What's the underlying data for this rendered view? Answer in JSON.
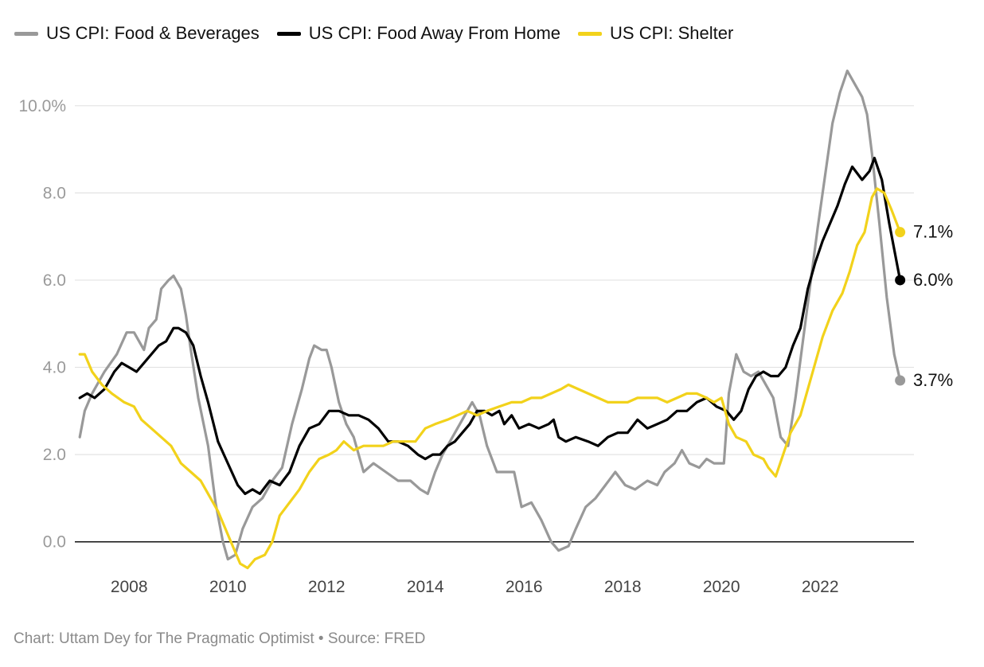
{
  "legend": [
    {
      "label": "US CPI: Food & Beverages",
      "color": "#999999"
    },
    {
      "label": "US CPI: Food Away From Home",
      "color": "#000000"
    },
    {
      "label": "US CPI: Shelter",
      "color": "#f2d21b"
    }
  ],
  "credit": "Chart: Uttam Dey for The Pragmatic Optimist • Source: FRED",
  "chart_data": {
    "type": "line",
    "title": "",
    "xlabel": "",
    "ylabel": "",
    "xlim": [
      2006.9,
      2023.9
    ],
    "ylim": [
      -0.9,
      11.0
    ],
    "yticks": [
      0,
      2,
      4,
      6,
      8,
      10
    ],
    "ytick_labels": [
      "0.0",
      "2.0",
      "4.0",
      "6.0",
      "8.0",
      "10.0%"
    ],
    "xticks": [
      2008,
      2010,
      2012,
      2014,
      2016,
      2018,
      2020,
      2022
    ],
    "xtick_labels": [
      "2008",
      "2010",
      "2012",
      "2014",
      "2016",
      "2018",
      "2020",
      "2022"
    ],
    "grid": "horizontal",
    "legend_position": "top-left",
    "series": [
      {
        "name": "US CPI: Food & Beverages",
        "color": "#999999",
        "end_label": "3.7%",
        "points": [
          [
            2007.0,
            2.4
          ],
          [
            2007.1,
            3.0
          ],
          [
            2007.25,
            3.4
          ],
          [
            2007.5,
            3.9
          ],
          [
            2007.75,
            4.3
          ],
          [
            2007.95,
            4.8
          ],
          [
            2008.1,
            4.8
          ],
          [
            2008.3,
            4.4
          ],
          [
            2008.4,
            4.9
          ],
          [
            2008.55,
            5.1
          ],
          [
            2008.65,
            5.8
          ],
          [
            2008.8,
            6.0
          ],
          [
            2008.9,
            6.1
          ],
          [
            2009.05,
            5.8
          ],
          [
            2009.15,
            5.2
          ],
          [
            2009.25,
            4.4
          ],
          [
            2009.4,
            3.3
          ],
          [
            2009.6,
            2.2
          ],
          [
            2009.75,
            0.9
          ],
          [
            2009.9,
            0.0
          ],
          [
            2010.0,
            -0.4
          ],
          [
            2010.15,
            -0.3
          ],
          [
            2010.3,
            0.3
          ],
          [
            2010.5,
            0.8
          ],
          [
            2010.7,
            1.0
          ],
          [
            2010.9,
            1.4
          ],
          [
            2011.1,
            1.7
          ],
          [
            2011.3,
            2.7
          ],
          [
            2011.5,
            3.5
          ],
          [
            2011.65,
            4.2
          ],
          [
            2011.75,
            4.5
          ],
          [
            2011.9,
            4.4
          ],
          [
            2012.0,
            4.4
          ],
          [
            2012.1,
            4.0
          ],
          [
            2012.25,
            3.2
          ],
          [
            2012.4,
            2.7
          ],
          [
            2012.55,
            2.4
          ],
          [
            2012.75,
            1.6
          ],
          [
            2012.95,
            1.8
          ],
          [
            2013.2,
            1.6
          ],
          [
            2013.45,
            1.4
          ],
          [
            2013.7,
            1.4
          ],
          [
            2013.9,
            1.2
          ],
          [
            2014.05,
            1.1
          ],
          [
            2014.2,
            1.6
          ],
          [
            2014.35,
            2.0
          ],
          [
            2014.5,
            2.3
          ],
          [
            2014.7,
            2.7
          ],
          [
            2014.85,
            3.0
          ],
          [
            2014.95,
            3.2
          ],
          [
            2015.1,
            2.9
          ],
          [
            2015.25,
            2.2
          ],
          [
            2015.45,
            1.6
          ],
          [
            2015.6,
            1.6
          ],
          [
            2015.8,
            1.6
          ],
          [
            2015.95,
            0.8
          ],
          [
            2016.15,
            0.9
          ],
          [
            2016.35,
            0.5
          ],
          [
            2016.55,
            0.0
          ],
          [
            2016.7,
            -0.2
          ],
          [
            2016.9,
            -0.1
          ],
          [
            2017.05,
            0.3
          ],
          [
            2017.25,
            0.8
          ],
          [
            2017.45,
            1.0
          ],
          [
            2017.65,
            1.3
          ],
          [
            2017.85,
            1.6
          ],
          [
            2018.05,
            1.3
          ],
          [
            2018.25,
            1.2
          ],
          [
            2018.5,
            1.4
          ],
          [
            2018.7,
            1.3
          ],
          [
            2018.85,
            1.6
          ],
          [
            2019.05,
            1.8
          ],
          [
            2019.2,
            2.1
          ],
          [
            2019.35,
            1.8
          ],
          [
            2019.55,
            1.7
          ],
          [
            2019.7,
            1.9
          ],
          [
            2019.85,
            1.8
          ],
          [
            2020.05,
            1.8
          ],
          [
            2020.15,
            3.4
          ],
          [
            2020.3,
            4.3
          ],
          [
            2020.45,
            3.9
          ],
          [
            2020.6,
            3.8
          ],
          [
            2020.75,
            3.9
          ],
          [
            2020.9,
            3.6
          ],
          [
            2021.05,
            3.3
          ],
          [
            2021.2,
            2.4
          ],
          [
            2021.35,
            2.2
          ],
          [
            2021.5,
            3.3
          ],
          [
            2021.65,
            4.6
          ],
          [
            2021.8,
            5.9
          ],
          [
            2021.95,
            7.2
          ],
          [
            2022.1,
            8.4
          ],
          [
            2022.25,
            9.6
          ],
          [
            2022.4,
            10.3
          ],
          [
            2022.55,
            10.8
          ],
          [
            2022.7,
            10.5
          ],
          [
            2022.85,
            10.2
          ],
          [
            2022.95,
            9.8
          ],
          [
            2023.05,
            8.9
          ],
          [
            2023.2,
            7.3
          ],
          [
            2023.35,
            5.6
          ],
          [
            2023.5,
            4.3
          ],
          [
            2023.62,
            3.7
          ]
        ]
      },
      {
        "name": "US CPI: Food Away From Home",
        "color": "#000000",
        "end_label": "6.0%",
        "points": [
          [
            2007.0,
            3.3
          ],
          [
            2007.15,
            3.4
          ],
          [
            2007.3,
            3.3
          ],
          [
            2007.5,
            3.5
          ],
          [
            2007.7,
            3.9
          ],
          [
            2007.85,
            4.1
          ],
          [
            2008.0,
            4.0
          ],
          [
            2008.15,
            3.9
          ],
          [
            2008.3,
            4.1
          ],
          [
            2008.45,
            4.3
          ],
          [
            2008.6,
            4.5
          ],
          [
            2008.75,
            4.6
          ],
          [
            2008.9,
            4.9
          ],
          [
            2009.0,
            4.9
          ],
          [
            2009.15,
            4.8
          ],
          [
            2009.3,
            4.5
          ],
          [
            2009.45,
            3.8
          ],
          [
            2009.6,
            3.2
          ],
          [
            2009.8,
            2.3
          ],
          [
            2010.0,
            1.8
          ],
          [
            2010.2,
            1.3
          ],
          [
            2010.35,
            1.1
          ],
          [
            2010.5,
            1.2
          ],
          [
            2010.65,
            1.1
          ],
          [
            2010.85,
            1.4
          ],
          [
            2011.05,
            1.3
          ],
          [
            2011.25,
            1.6
          ],
          [
            2011.45,
            2.2
          ],
          [
            2011.65,
            2.6
          ],
          [
            2011.85,
            2.7
          ],
          [
            2012.05,
            3.0
          ],
          [
            2012.25,
            3.0
          ],
          [
            2012.45,
            2.9
          ],
          [
            2012.65,
            2.9
          ],
          [
            2012.85,
            2.8
          ],
          [
            2013.05,
            2.6
          ],
          [
            2013.25,
            2.3
          ],
          [
            2013.45,
            2.3
          ],
          [
            2013.65,
            2.2
          ],
          [
            2013.85,
            2.0
          ],
          [
            2014.0,
            1.9
          ],
          [
            2014.15,
            2.0
          ],
          [
            2014.3,
            2.0
          ],
          [
            2014.45,
            2.2
          ],
          [
            2014.6,
            2.3
          ],
          [
            2014.75,
            2.5
          ],
          [
            2014.9,
            2.7
          ],
          [
            2015.05,
            3.0
          ],
          [
            2015.2,
            3.0
          ],
          [
            2015.35,
            2.9
          ],
          [
            2015.5,
            3.0
          ],
          [
            2015.6,
            2.7
          ],
          [
            2015.75,
            2.9
          ],
          [
            2015.9,
            2.6
          ],
          [
            2016.1,
            2.7
          ],
          [
            2016.3,
            2.6
          ],
          [
            2016.5,
            2.7
          ],
          [
            2016.6,
            2.8
          ],
          [
            2016.7,
            2.4
          ],
          [
            2016.85,
            2.3
          ],
          [
            2017.05,
            2.4
          ],
          [
            2017.3,
            2.3
          ],
          [
            2017.5,
            2.2
          ],
          [
            2017.7,
            2.4
          ],
          [
            2017.9,
            2.5
          ],
          [
            2018.1,
            2.5
          ],
          [
            2018.3,
            2.8
          ],
          [
            2018.5,
            2.6
          ],
          [
            2018.7,
            2.7
          ],
          [
            2018.9,
            2.8
          ],
          [
            2019.1,
            3.0
          ],
          [
            2019.3,
            3.0
          ],
          [
            2019.5,
            3.2
          ],
          [
            2019.7,
            3.3
          ],
          [
            2019.9,
            3.1
          ],
          [
            2020.1,
            3.0
          ],
          [
            2020.25,
            2.8
          ],
          [
            2020.4,
            3.0
          ],
          [
            2020.55,
            3.5
          ],
          [
            2020.7,
            3.8
          ],
          [
            2020.85,
            3.9
          ],
          [
            2021.0,
            3.8
          ],
          [
            2021.15,
            3.8
          ],
          [
            2021.3,
            4.0
          ],
          [
            2021.45,
            4.5
          ],
          [
            2021.6,
            4.9
          ],
          [
            2021.75,
            5.8
          ],
          [
            2021.9,
            6.4
          ],
          [
            2022.05,
            6.9
          ],
          [
            2022.2,
            7.3
          ],
          [
            2022.35,
            7.7
          ],
          [
            2022.5,
            8.2
          ],
          [
            2022.65,
            8.6
          ],
          [
            2022.85,
            8.3
          ],
          [
            2023.0,
            8.5
          ],
          [
            2023.1,
            8.8
          ],
          [
            2023.25,
            8.3
          ],
          [
            2023.4,
            7.3
          ],
          [
            2023.62,
            6.0
          ]
        ]
      },
      {
        "name": "US CPI: Shelter",
        "color": "#f2d21b",
        "end_label": "7.1%",
        "points": [
          [
            2007.0,
            4.3
          ],
          [
            2007.1,
            4.3
          ],
          [
            2007.25,
            3.9
          ],
          [
            2007.45,
            3.6
          ],
          [
            2007.65,
            3.4
          ],
          [
            2007.9,
            3.2
          ],
          [
            2008.1,
            3.1
          ],
          [
            2008.25,
            2.8
          ],
          [
            2008.45,
            2.6
          ],
          [
            2008.65,
            2.4
          ],
          [
            2008.85,
            2.2
          ],
          [
            2009.05,
            1.8
          ],
          [
            2009.25,
            1.6
          ],
          [
            2009.45,
            1.4
          ],
          [
            2009.6,
            1.1
          ],
          [
            2009.8,
            0.7
          ],
          [
            2009.95,
            0.3
          ],
          [
            2010.1,
            -0.1
          ],
          [
            2010.25,
            -0.5
          ],
          [
            2010.4,
            -0.6
          ],
          [
            2010.55,
            -0.4
          ],
          [
            2010.75,
            -0.3
          ],
          [
            2010.9,
            0.0
          ],
          [
            2011.05,
            0.6
          ],
          [
            2011.25,
            0.9
          ],
          [
            2011.45,
            1.2
          ],
          [
            2011.65,
            1.6
          ],
          [
            2011.85,
            1.9
          ],
          [
            2012.05,
            2.0
          ],
          [
            2012.2,
            2.1
          ],
          [
            2012.35,
            2.3
          ],
          [
            2012.55,
            2.1
          ],
          [
            2012.75,
            2.2
          ],
          [
            2012.95,
            2.2
          ],
          [
            2013.15,
            2.2
          ],
          [
            2013.35,
            2.3
          ],
          [
            2013.6,
            2.3
          ],
          [
            2013.8,
            2.3
          ],
          [
            2014.0,
            2.6
          ],
          [
            2014.2,
            2.7
          ],
          [
            2014.45,
            2.8
          ],
          [
            2014.65,
            2.9
          ],
          [
            2014.85,
            3.0
          ],
          [
            2015.05,
            2.9
          ],
          [
            2015.25,
            3.0
          ],
          [
            2015.5,
            3.1
          ],
          [
            2015.75,
            3.2
          ],
          [
            2015.95,
            3.2
          ],
          [
            2016.15,
            3.3
          ],
          [
            2016.35,
            3.3
          ],
          [
            2016.55,
            3.4
          ],
          [
            2016.75,
            3.5
          ],
          [
            2016.9,
            3.6
          ],
          [
            2017.1,
            3.5
          ],
          [
            2017.3,
            3.4
          ],
          [
            2017.5,
            3.3
          ],
          [
            2017.7,
            3.2
          ],
          [
            2017.9,
            3.2
          ],
          [
            2018.1,
            3.2
          ],
          [
            2018.3,
            3.3
          ],
          [
            2018.5,
            3.3
          ],
          [
            2018.7,
            3.3
          ],
          [
            2018.9,
            3.2
          ],
          [
            2019.1,
            3.3
          ],
          [
            2019.3,
            3.4
          ],
          [
            2019.5,
            3.4
          ],
          [
            2019.7,
            3.3
          ],
          [
            2019.85,
            3.2
          ],
          [
            2020.0,
            3.3
          ],
          [
            2020.15,
            2.7
          ],
          [
            2020.3,
            2.4
          ],
          [
            2020.5,
            2.3
          ],
          [
            2020.65,
            2.0
          ],
          [
            2020.85,
            1.9
          ],
          [
            2020.95,
            1.7
          ],
          [
            2021.1,
            1.5
          ],
          [
            2021.25,
            2.0
          ],
          [
            2021.4,
            2.5
          ],
          [
            2021.6,
            2.9
          ],
          [
            2021.75,
            3.5
          ],
          [
            2021.9,
            4.1
          ],
          [
            2022.05,
            4.7
          ],
          [
            2022.25,
            5.3
          ],
          [
            2022.45,
            5.7
          ],
          [
            2022.6,
            6.2
          ],
          [
            2022.75,
            6.8
          ],
          [
            2022.9,
            7.1
          ],
          [
            2023.05,
            7.9
          ],
          [
            2023.15,
            8.1
          ],
          [
            2023.3,
            8.0
          ],
          [
            2023.45,
            7.6
          ],
          [
            2023.62,
            7.1
          ]
        ]
      }
    ]
  }
}
